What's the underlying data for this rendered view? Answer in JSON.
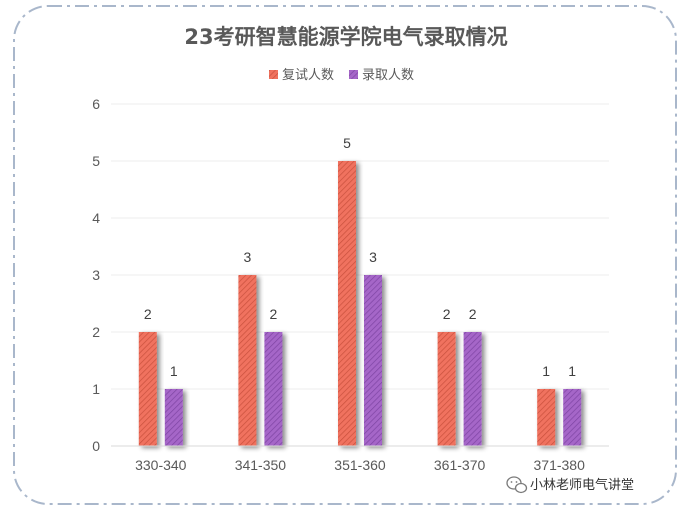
{
  "chart_data": {
    "type": "bar",
    "title": "23考研智慧能源学院电气录取情况",
    "categories": [
      "330-340",
      "341-350",
      "351-360",
      "361-370",
      "371-380"
    ],
    "series": [
      {
        "name": "复试人数",
        "values": [
          2,
          3,
          5,
          2,
          1
        ],
        "color": "#F0725E"
      },
      {
        "name": "录取人数",
        "values": [
          1,
          2,
          3,
          2,
          1
        ],
        "color": "#A566C8"
      }
    ],
    "yticks": [
      "0",
      "1",
      "2",
      "3",
      "4",
      "5",
      "6"
    ],
    "ylim": [
      0,
      6
    ],
    "xlabel": "",
    "ylabel": "",
    "legend_position": "top-center",
    "grid": true
  },
  "watermark": {
    "text": "小林老师电气讲堂",
    "icon": "wechat-icon"
  }
}
